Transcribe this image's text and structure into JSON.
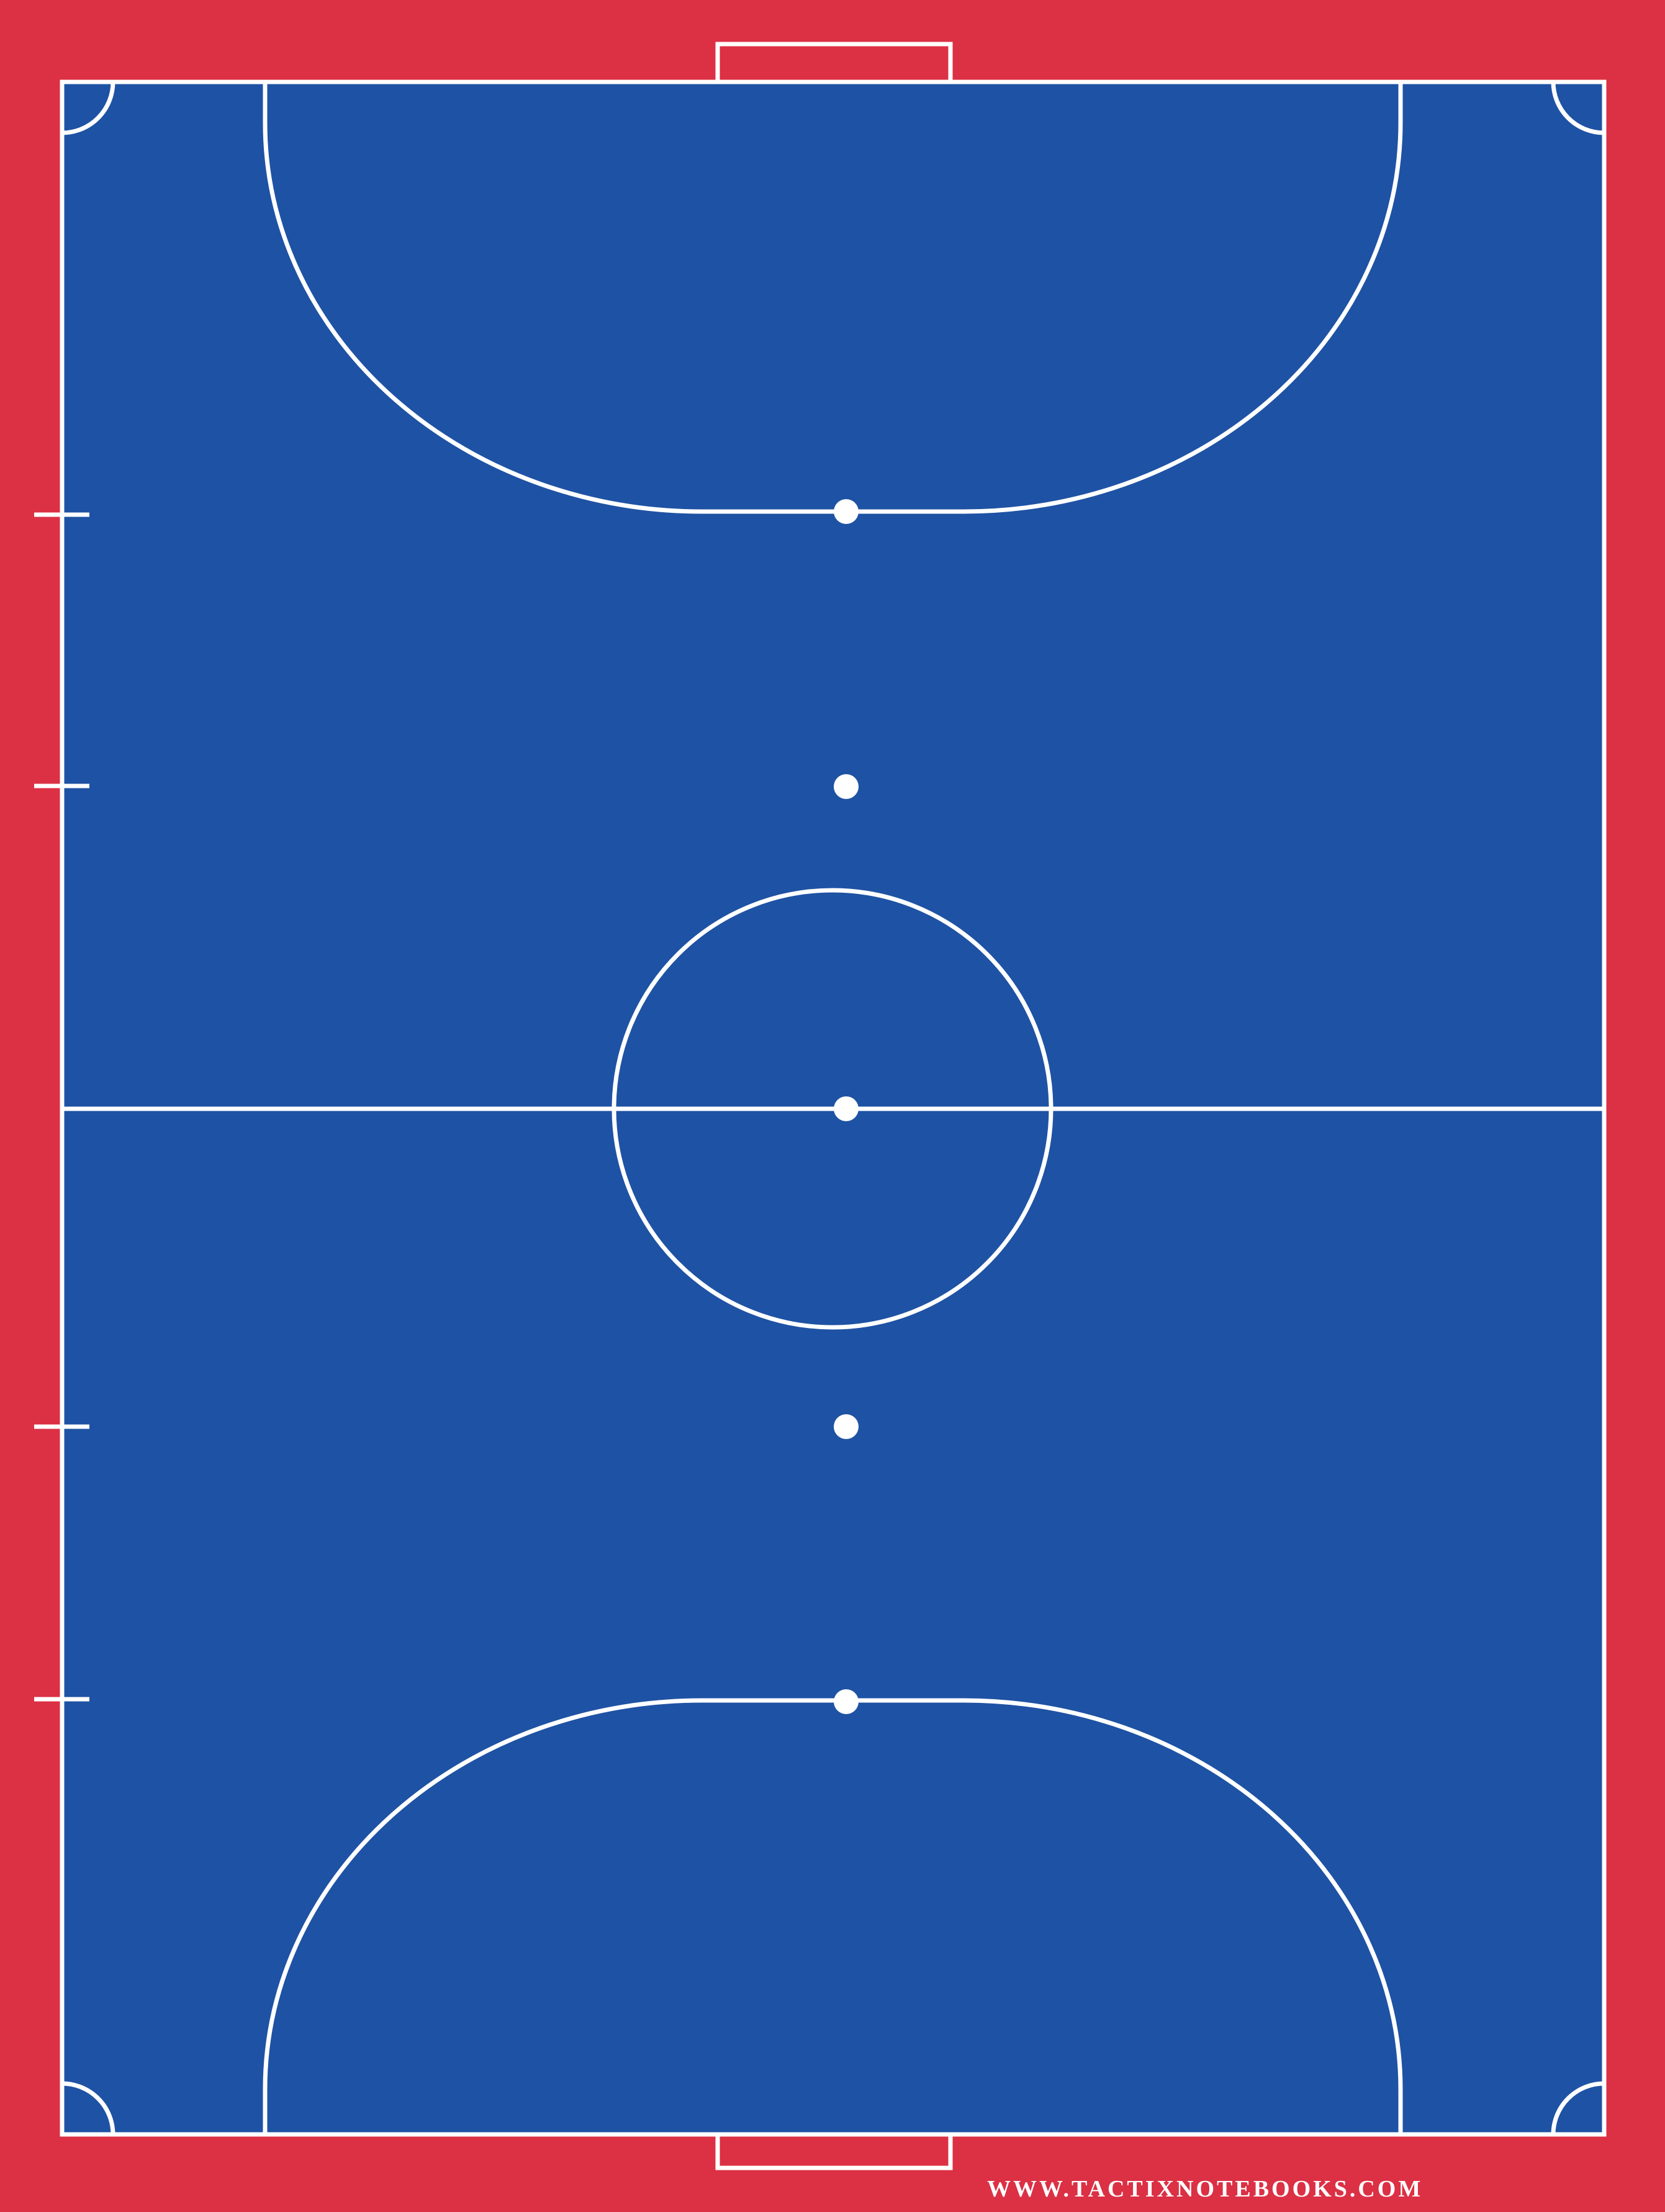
{
  "court": {
    "surround_color": "#dc3044",
    "surface_color": "#1e52a4",
    "line_color": "#ffffff",
    "markings": {
      "outer_boundary": "boundary-line",
      "halfway_line": "halfway-line",
      "centre_circle": "centre-circle",
      "penalty_areas": [
        "top-penalty-area",
        "bottom-penalty-area"
      ],
      "goals": [
        "top-goal",
        "bottom-goal"
      ],
      "spots": [
        "top-penalty-spot",
        "top-second-penalty-spot",
        "centre-spot",
        "bottom-second-penalty-spot",
        "bottom-penalty-spot"
      ],
      "corner_arcs": [
        "corner-arc-top-left",
        "corner-arc-top-right",
        "corner-arc-bottom-left",
        "corner-arc-bottom-right"
      ],
      "substitution_marks": [
        "sideline-mark-1",
        "sideline-mark-2",
        "sideline-mark-3",
        "sideline-mark-4"
      ]
    }
  },
  "footer": {
    "website": "WWW.TACTIXNOTEBOOKS.COM"
  }
}
